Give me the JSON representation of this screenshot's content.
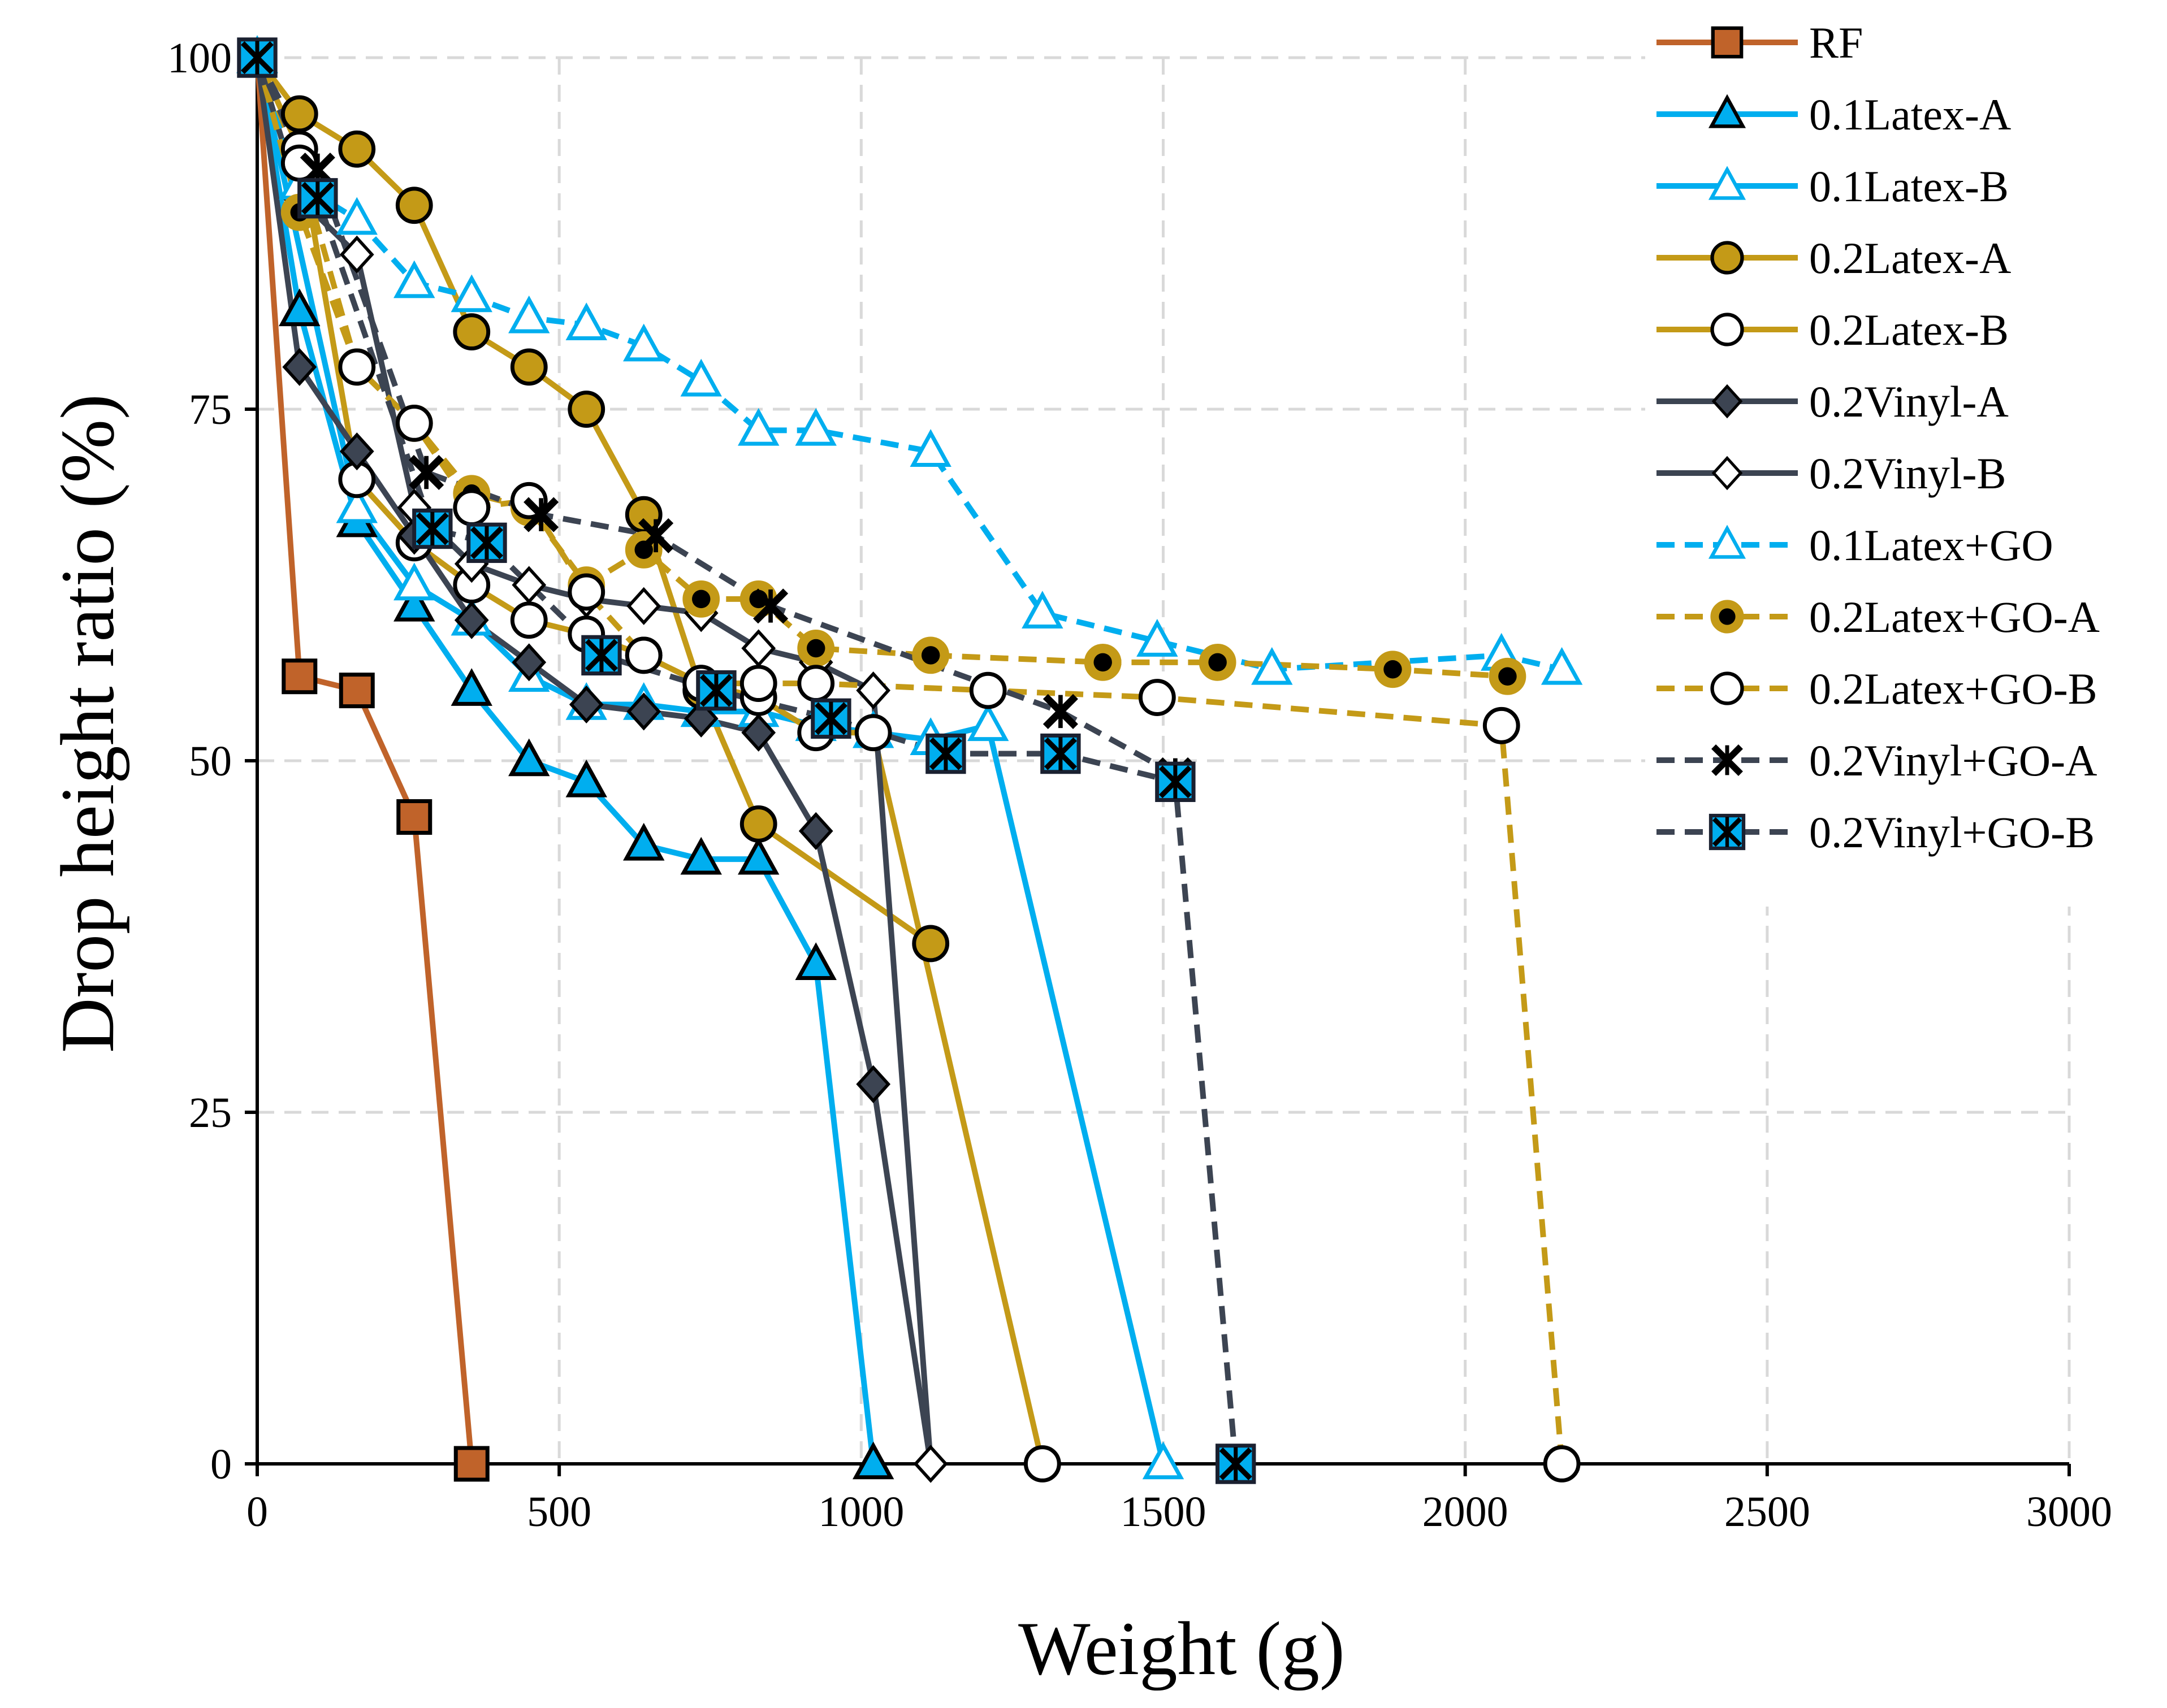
{
  "chart_data": {
    "type": "line",
    "title": "",
    "xlabel": "Weight (g)",
    "ylabel": "Drop height ratio (%)",
    "xlim": [
      0,
      3000
    ],
    "ylim": [
      0,
      100
    ],
    "xticks": [
      "0",
      "500",
      "1000",
      "1500",
      "2000",
      "2500",
      "3000"
    ],
    "yticks": [
      "0",
      "25",
      "50",
      "75",
      "100"
    ],
    "grid": true,
    "legend_position": "top-right",
    "series": [
      {
        "name": "RF",
        "color": "#c0632a",
        "dash": "solid",
        "marker": "square",
        "marker_fill": "#c0632a",
        "x": [
          0,
          70,
          165,
          260,
          355
        ],
        "y": [
          100,
          56,
          55,
          46,
          0
        ]
      },
      {
        "name": "0.1Latex-A",
        "color": "#00aeef",
        "dash": "solid",
        "marker": "triangle",
        "marker_fill": "#00aeef",
        "x": [
          0,
          70,
          165,
          260,
          355,
          450,
          545,
          640,
          735,
          830,
          925,
          1020
        ],
        "y": [
          100,
          82,
          67,
          61,
          55,
          50,
          48.5,
          44,
          43,
          43,
          35.5,
          0
        ]
      },
      {
        "name": "0.1Latex-B",
        "color": "#00aeef",
        "dash": "solid",
        "marker": "triangle",
        "marker_fill": "#ffffff",
        "x": [
          0,
          165,
          260,
          355,
          450,
          545,
          640,
          735,
          830,
          925,
          1020,
          1115,
          1210,
          1500
        ],
        "y": [
          100,
          68,
          62.5,
          60,
          56,
          54,
          54,
          53.5,
          53.5,
          52.5,
          52,
          51.5,
          52.5,
          0
        ]
      },
      {
        "name": "0.2Latex-A",
        "color": "#c49a17",
        "dash": "solid",
        "marker": "circle",
        "marker_fill": "#c49a17",
        "x": [
          0,
          70,
          165,
          260,
          355,
          450,
          545,
          640,
          735,
          830,
          1115
        ],
        "y": [
          100,
          96,
          93.5,
          89.5,
          80.5,
          78,
          75,
          67.5,
          55,
          45.5,
          37
        ]
      },
      {
        "name": "0.2Latex-B",
        "color": "#c49a17",
        "dash": "solid",
        "marker": "circle",
        "marker_fill": "#ffffff",
        "x": [
          0,
          70,
          165,
          260,
          355,
          450,
          545,
          640,
          735,
          830,
          925,
          1020,
          1300
        ],
        "y": [
          100,
          93.5,
          70,
          65.5,
          62.5,
          60,
          59,
          57.5,
          55.5,
          54.5,
          52,
          52,
          0
        ]
      },
      {
        "name": "0.2Vinyl-A",
        "color": "#3c4452",
        "dash": "solid",
        "marker": "diamond",
        "marker_fill": "#3c4452",
        "x": [
          0,
          70,
          165,
          260,
          355,
          450,
          545,
          640,
          735,
          830,
          925,
          1020,
          1115
        ],
        "y": [
          100,
          78,
          72,
          66,
          60,
          57,
          54,
          53.5,
          53,
          52,
          45,
          27,
          0
        ]
      },
      {
        "name": "0.2Vinyl-B",
        "color": "#3c4452",
        "dash": "solid",
        "marker": "diamond",
        "marker_fill": "#ffffff",
        "x": [
          0,
          70,
          165,
          260,
          355,
          450,
          545,
          640,
          735,
          830,
          925,
          1020,
          1115
        ],
        "y": [
          100,
          90,
          86,
          68,
          64,
          62.5,
          61.5,
          61,
          60.5,
          58,
          57,
          55,
          0
        ]
      },
      {
        "name": "0.1Latex+GO",
        "color": "#00aeef",
        "dash": "dashed",
        "marker": "triangle",
        "marker_fill": "#ffffff",
        "x": [
          0,
          70,
          165,
          260,
          355,
          450,
          545,
          640,
          735,
          830,
          925,
          1115,
          1300,
          1490,
          1680,
          2060,
          2160
        ],
        "y": [
          100,
          91,
          88.5,
          84,
          83,
          81.5,
          81,
          79.5,
          77,
          73.5,
          73.5,
          72,
          60.5,
          58.5,
          56.5,
          57.5,
          56.5
        ]
      },
      {
        "name": "0.2Latex+GO-A",
        "color": "#c49a17",
        "dash": "dashed",
        "marker": "circle-dot",
        "marker_fill": "#c49a17",
        "x": [
          0,
          70,
          165,
          260,
          355,
          450,
          545,
          640,
          735,
          830,
          925,
          1115,
          1400,
          1590,
          1880,
          2070
        ],
        "y": [
          100,
          89,
          78,
          74,
          69,
          68,
          62.5,
          65,
          61.5,
          61.5,
          58,
          57.5,
          57,
          57,
          56.5,
          56
        ]
      },
      {
        "name": "0.2Latex+GO-B",
        "color": "#c49a17",
        "dash": "dashed",
        "marker": "circle",
        "marker_fill": "#ffffff",
        "x": [
          0,
          70,
          165,
          260,
          355,
          450,
          545,
          640,
          735,
          830,
          925,
          1210,
          1490,
          2060,
          2160
        ],
        "y": [
          100,
          92.5,
          78,
          74,
          68,
          68.5,
          62,
          57.5,
          55.5,
          55.5,
          55.5,
          55,
          54.5,
          52.5,
          0
        ]
      },
      {
        "name": "0.2Vinyl+GO-A",
        "color": "#3c4452",
        "dash": "dashed",
        "marker": "x",
        "marker_fill": "#000000",
        "x": [
          0,
          100,
          280,
          470,
          660,
          850,
          1330,
          1520
        ],
        "y": [
          100,
          92,
          70.5,
          67.5,
          66,
          61,
          53.5,
          49
        ]
      },
      {
        "name": "0.2Vinyl+GO-B",
        "color": "#3c4452",
        "dash": "dashed",
        "marker": "square-star",
        "marker_fill": "#00aeef",
        "x": [
          0,
          100,
          290,
          380,
          570,
          760,
          950,
          1140,
          1330,
          1520,
          1620
        ],
        "y": [
          100,
          90,
          66.5,
          65.5,
          57.5,
          55,
          53,
          50.5,
          50.5,
          48.5,
          0
        ]
      }
    ]
  }
}
